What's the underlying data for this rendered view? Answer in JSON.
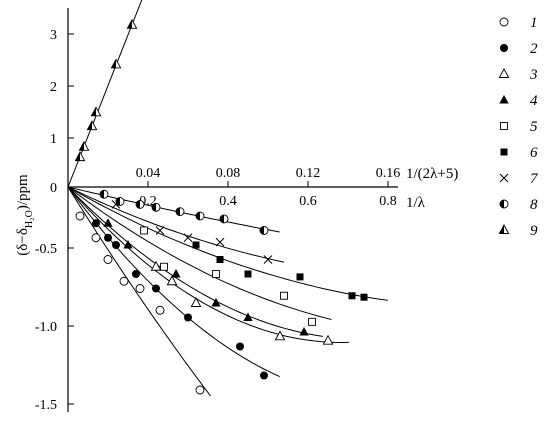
{
  "chart_data": {
    "type": "scatter",
    "ylabel": "(δ−δ",
    "ylabel_sub": "H₂O",
    "ylabel_end": ")/ppm",
    "y_axis": {
      "range": [
        -1.6,
        3.4
      ],
      "ticks": [
        "3",
        "2",
        "1",
        "0",
        "-0.5",
        "-1.0",
        "-1.5"
      ]
    },
    "x_axis_lower": {
      "label": "1/λ",
      "range": [
        0,
        0.9
      ],
      "ticks": [
        "0.2",
        "0.4",
        "0.6",
        "0.8"
      ]
    },
    "x_axis_upper": {
      "label": "1/(2λ+5)",
      "range": [
        0,
        0.18
      ],
      "ticks": [
        "0.04",
        "0.08",
        "0.12",
        "0.16"
      ]
    },
    "legend_position": "right",
    "series": [
      {
        "name": "1",
        "marker": "open-circle",
        "x": [
          0.03,
          0.07,
          0.1,
          0.14,
          0.18,
          0.23,
          0.33
        ],
        "y": [
          -0.2,
          -0.35,
          -0.5,
          -0.65,
          -0.7,
          -0.85,
          -1.4
        ]
      },
      {
        "name": "2",
        "marker": "filled-circle",
        "x": [
          0.07,
          0.1,
          0.12,
          0.17,
          0.22,
          0.3,
          0.43,
          0.49
        ],
        "y": [
          -0.25,
          -0.35,
          -0.4,
          -0.6,
          -0.7,
          -0.9,
          -1.1,
          -1.3
        ]
      },
      {
        "name": "3",
        "marker": "open-triangle",
        "x": [
          0.22,
          0.26,
          0.32,
          0.53,
          0.65
        ],
        "y": [
          -0.55,
          -0.65,
          -0.8,
          -1.03,
          -1.06
        ]
      },
      {
        "name": "4",
        "marker": "filled-triangle",
        "x": [
          0.1,
          0.15,
          0.27,
          0.37,
          0.45,
          0.59
        ],
        "y": [
          -0.25,
          -0.4,
          -0.6,
          -0.8,
          -0.9,
          -1.0
        ]
      },
      {
        "name": "5",
        "marker": "open-square",
        "x": [
          0.19,
          0.24,
          0.37,
          0.54,
          0.61
        ],
        "y": [
          -0.3,
          -0.55,
          -0.6,
          -0.75,
          -0.93
        ]
      },
      {
        "name": "6",
        "marker": "filled-square",
        "x": [
          0.32,
          0.38,
          0.45,
          0.58,
          0.71,
          0.74
        ],
        "y": [
          -0.4,
          -0.5,
          -0.6,
          -0.62,
          -0.75,
          -0.76
        ]
      },
      {
        "name": "7",
        "marker": "cross",
        "x": [
          0.12,
          0.23,
          0.3,
          0.38,
          0.5
        ],
        "y": [
          -0.12,
          -0.3,
          -0.35,
          -0.38,
          -0.5
        ]
      },
      {
        "name": "8",
        "marker": "half-circle",
        "x": [
          0.09,
          0.13,
          0.18,
          0.22,
          0.28,
          0.33,
          0.39,
          0.49
        ],
        "y": [
          -0.05,
          -0.1,
          -0.12,
          -0.14,
          -0.17,
          -0.2,
          -0.22,
          -0.3
        ]
      },
      {
        "name": "9",
        "marker": "half-triangle",
        "x": [
          0.03,
          0.04,
          0.06,
          0.07,
          0.12,
          0.16
        ],
        "y": [
          0.58,
          0.78,
          1.18,
          1.45,
          2.38,
          3.15
        ]
      }
    ]
  }
}
